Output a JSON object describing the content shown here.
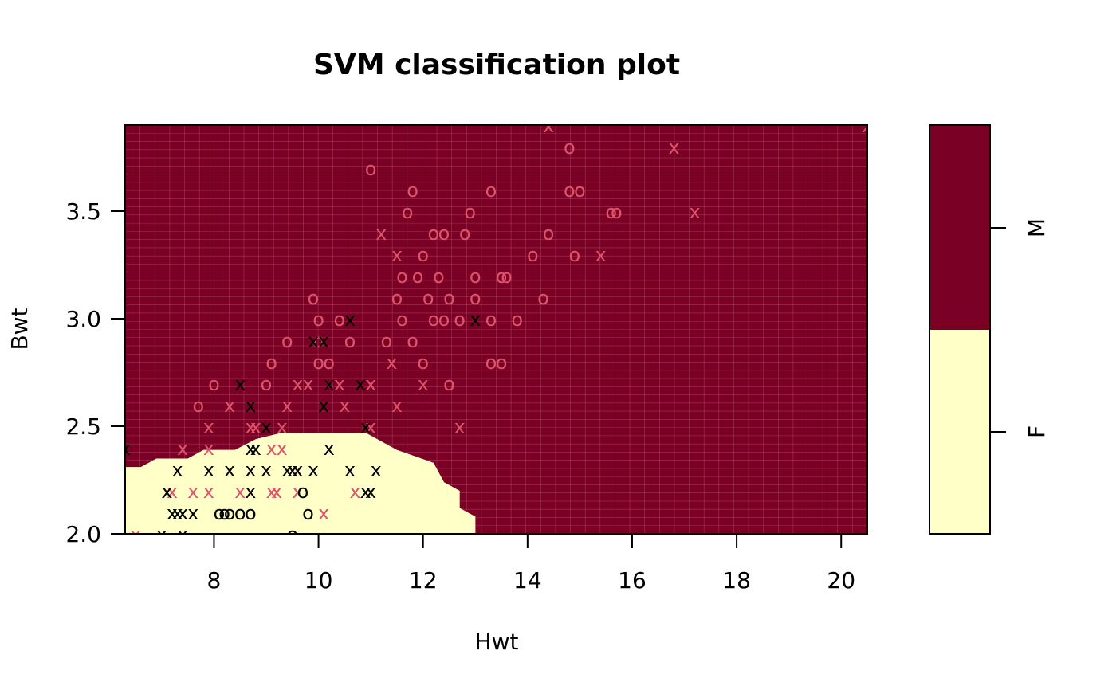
{
  "colors": {
    "class_M": "#7b0025",
    "class_F": "#ffffc8",
    "point_M": "#df536b",
    "point_F": "#000000",
    "frame": "#000000"
  },
  "chart_data": {
    "type": "scatter",
    "title": "SVM classification plot",
    "xlabel": "Hwt",
    "ylabel": "Bwt",
    "xlim": [
      6.3,
      20.5
    ],
    "ylim": [
      2.0,
      3.9
    ],
    "xticks": [
      8,
      10,
      12,
      14,
      16,
      18,
      20
    ],
    "yticks": [
      2.0,
      2.5,
      3.0,
      3.5
    ],
    "grid": true,
    "legend_position": "right",
    "classes": [
      "F",
      "M"
    ],
    "marker_meaning": {
      "o": "support vector",
      "x": "data point"
    },
    "decision_boundary_F_region": [
      [
        6.3,
        2.0
      ],
      [
        6.3,
        2.31
      ],
      [
        6.6,
        2.31
      ],
      [
        6.9,
        2.35
      ],
      [
        7.5,
        2.35
      ],
      [
        7.8,
        2.39
      ],
      [
        8.4,
        2.39
      ],
      [
        8.8,
        2.44
      ],
      [
        9.3,
        2.47
      ],
      [
        10.9,
        2.47
      ],
      [
        11.5,
        2.39
      ],
      [
        12.2,
        2.33
      ],
      [
        12.4,
        2.24
      ],
      [
        12.7,
        2.2
      ],
      [
        12.7,
        2.12
      ],
      [
        13.0,
        2.08
      ],
      [
        13.0,
        2.0
      ]
    ],
    "series": [
      {
        "name": "M",
        "points": [
          [
            6.5,
            2.0,
            "x"
          ],
          [
            7.2,
            2.2,
            "x"
          ],
          [
            7.4,
            2.4,
            "x"
          ],
          [
            7.6,
            2.2,
            "x"
          ],
          [
            7.9,
            2.2,
            "x"
          ],
          [
            7.9,
            2.4,
            "x"
          ],
          [
            7.9,
            2.5,
            "x"
          ],
          [
            7.7,
            2.6,
            "o"
          ],
          [
            8.0,
            2.7,
            "o"
          ],
          [
            8.3,
            2.6,
            "x"
          ],
          [
            8.5,
            2.2,
            "x"
          ],
          [
            8.7,
            2.5,
            "x"
          ],
          [
            8.8,
            2.5,
            "x"
          ],
          [
            9.0,
            2.7,
            "o"
          ],
          [
            9.1,
            2.2,
            "x"
          ],
          [
            9.1,
            2.4,
            "x"
          ],
          [
            9.2,
            2.2,
            "x"
          ],
          [
            9.3,
            2.4,
            "x"
          ],
          [
            9.3,
            2.5,
            "x"
          ],
          [
            9.4,
            2.6,
            "x"
          ],
          [
            9.4,
            2.9,
            "o"
          ],
          [
            9.1,
            2.8,
            "o"
          ],
          [
            9.6,
            2.2,
            "x"
          ],
          [
            9.6,
            2.3,
            "x"
          ],
          [
            9.6,
            2.7,
            "x"
          ],
          [
            9.8,
            2.7,
            "x"
          ],
          [
            9.9,
            3.1,
            "o"
          ],
          [
            10.0,
            2.8,
            "o"
          ],
          [
            10.0,
            2.9,
            "o"
          ],
          [
            10.0,
            3.0,
            "o"
          ],
          [
            10.1,
            2.1,
            "x"
          ],
          [
            10.2,
            2.8,
            "o"
          ],
          [
            10.2,
            2.7,
            "x"
          ],
          [
            10.4,
            2.7,
            "x"
          ],
          [
            10.4,
            3.0,
            "o"
          ],
          [
            10.5,
            2.6,
            "x"
          ],
          [
            10.6,
            2.9,
            "o"
          ],
          [
            10.7,
            2.2,
            "x"
          ],
          [
            11.0,
            2.5,
            "x"
          ],
          [
            11.0,
            2.7,
            "x"
          ],
          [
            11.0,
            3.7,
            "o"
          ],
          [
            11.2,
            3.4,
            "x"
          ],
          [
            11.3,
            2.9,
            "o"
          ],
          [
            11.4,
            2.8,
            "x"
          ],
          [
            11.5,
            3.1,
            "o"
          ],
          [
            11.5,
            3.3,
            "x"
          ],
          [
            11.5,
            2.6,
            "x"
          ],
          [
            11.6,
            3.0,
            "o"
          ],
          [
            11.6,
            3.2,
            "o"
          ],
          [
            11.7,
            3.5,
            "o"
          ],
          [
            11.8,
            3.6,
            "o"
          ],
          [
            11.8,
            2.9,
            "o"
          ],
          [
            11.9,
            3.2,
            "o"
          ],
          [
            12.0,
            2.8,
            "o"
          ],
          [
            12.0,
            3.3,
            "o"
          ],
          [
            12.0,
            2.7,
            "x"
          ],
          [
            12.1,
            3.1,
            "o"
          ],
          [
            12.2,
            3.0,
            "o"
          ],
          [
            12.2,
            3.4,
            "o"
          ],
          [
            12.3,
            3.2,
            "o"
          ],
          [
            12.4,
            3.0,
            "o"
          ],
          [
            12.4,
            3.4,
            "o"
          ],
          [
            12.5,
            3.1,
            "o"
          ],
          [
            12.5,
            2.7,
            "o"
          ],
          [
            12.7,
            2.5,
            "x"
          ],
          [
            12.7,
            3.0,
            "o"
          ],
          [
            12.8,
            3.4,
            "o"
          ],
          [
            12.9,
            3.5,
            "o"
          ],
          [
            13.0,
            3.1,
            "o"
          ],
          [
            13.0,
            3.2,
            "o"
          ],
          [
            13.3,
            2.8,
            "o"
          ],
          [
            13.3,
            3.0,
            "o"
          ],
          [
            13.3,
            3.6,
            "o"
          ],
          [
            13.5,
            2.8,
            "o"
          ],
          [
            13.5,
            3.2,
            "o"
          ],
          [
            13.6,
            3.2,
            "o"
          ],
          [
            13.8,
            3.0,
            "o"
          ],
          [
            14.1,
            3.3,
            "o"
          ],
          [
            14.3,
            3.1,
            "o"
          ],
          [
            14.4,
            3.4,
            "o"
          ],
          [
            14.4,
            3.9,
            "x"
          ],
          [
            14.8,
            3.6,
            "o"
          ],
          [
            14.8,
            3.8,
            "o"
          ],
          [
            14.9,
            3.3,
            "o"
          ],
          [
            15.0,
            3.6,
            "o"
          ],
          [
            15.4,
            3.3,
            "x"
          ],
          [
            15.6,
            3.5,
            "o"
          ],
          [
            15.7,
            3.5,
            "o"
          ],
          [
            16.8,
            3.8,
            "x"
          ],
          [
            17.2,
            3.5,
            "x"
          ],
          [
            20.5,
            3.9,
            "x"
          ]
        ]
      },
      {
        "name": "F",
        "points": [
          [
            6.3,
            2.4,
            "x"
          ],
          [
            7.0,
            2.0,
            "x"
          ],
          [
            7.4,
            2.0,
            "x"
          ],
          [
            7.1,
            2.2,
            "x"
          ],
          [
            7.2,
            2.1,
            "x"
          ],
          [
            7.3,
            2.1,
            "x"
          ],
          [
            7.4,
            2.1,
            "x"
          ],
          [
            7.6,
            2.1,
            "x"
          ],
          [
            7.3,
            2.3,
            "x"
          ],
          [
            7.9,
            2.3,
            "x"
          ],
          [
            8.1,
            2.1,
            "o"
          ],
          [
            8.2,
            2.1,
            "o"
          ],
          [
            8.3,
            2.1,
            "o"
          ],
          [
            8.5,
            2.1,
            "o"
          ],
          [
            8.7,
            2.1,
            "o"
          ],
          [
            8.3,
            2.3,
            "x"
          ],
          [
            8.5,
            2.7,
            "x"
          ],
          [
            8.7,
            2.2,
            "x"
          ],
          [
            8.7,
            2.3,
            "x"
          ],
          [
            8.7,
            2.4,
            "x"
          ],
          [
            8.7,
            2.6,
            "x"
          ],
          [
            8.8,
            2.4,
            "x"
          ],
          [
            9.0,
            2.3,
            "x"
          ],
          [
            9.0,
            2.5,
            "x"
          ],
          [
            9.4,
            2.3,
            "x"
          ],
          [
            9.5,
            2.0,
            "o"
          ],
          [
            9.5,
            2.3,
            "x"
          ],
          [
            9.6,
            2.3,
            "x"
          ],
          [
            9.7,
            2.2,
            "o"
          ],
          [
            9.8,
            2.1,
            "o"
          ],
          [
            9.9,
            2.3,
            "x"
          ],
          [
            9.9,
            2.9,
            "x"
          ],
          [
            10.1,
            2.9,
            "x"
          ],
          [
            10.1,
            2.6,
            "x"
          ],
          [
            10.2,
            2.4,
            "x"
          ],
          [
            10.2,
            2.7,
            "x"
          ],
          [
            10.6,
            2.3,
            "x"
          ],
          [
            10.6,
            3.0,
            "x"
          ],
          [
            10.8,
            2.7,
            "x"
          ],
          [
            10.9,
            2.2,
            "x"
          ],
          [
            10.9,
            2.5,
            "x"
          ],
          [
            11.0,
            2.2,
            "x"
          ],
          [
            11.1,
            2.3,
            "x"
          ],
          [
            13.0,
            3.0,
            "x"
          ]
        ]
      }
    ]
  }
}
